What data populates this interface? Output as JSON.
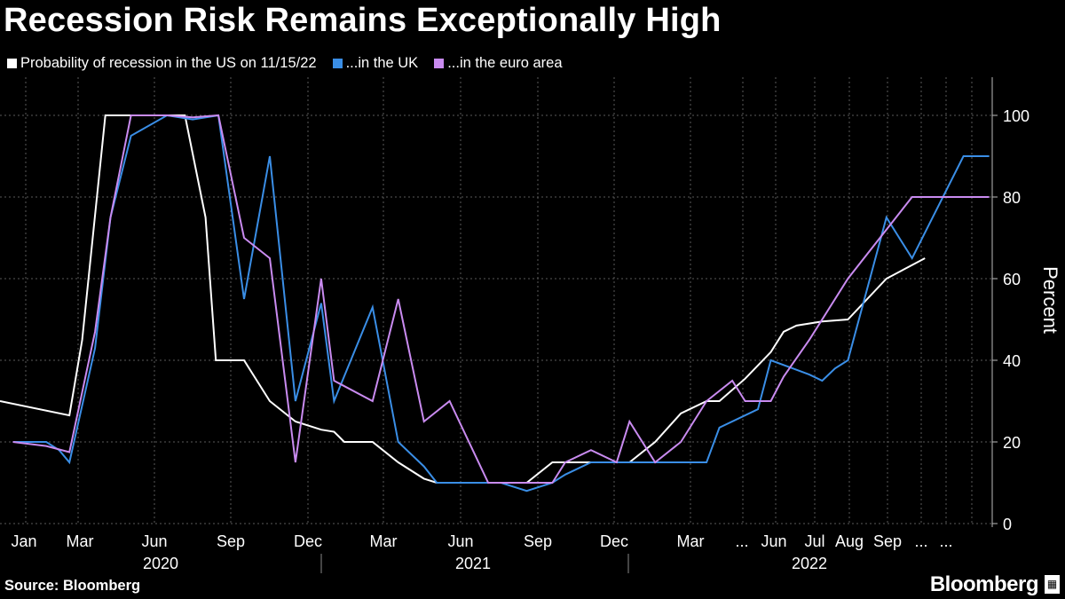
{
  "header": {
    "title": "Recession Risk Remains Exceptionally High"
  },
  "legend": {
    "items": [
      {
        "label": "Probability of recession in the US on 11/15/22",
        "color": "#ffffff"
      },
      {
        "label": "...in the UK",
        "color": "#3a8ee6"
      },
      {
        "label": "...in the euro area",
        "color": "#c98bf0"
      }
    ]
  },
  "footer": {
    "source": "Source: Bloomberg",
    "brand": "Bloomberg"
  },
  "chart_data": {
    "type": "line",
    "title": "Recession Risk Remains Exceptionally High",
    "ylabel": "Percent",
    "xlabel": "",
    "ylim": [
      0,
      100
    ],
    "y_ticks": [
      0,
      20,
      40,
      60,
      80,
      100
    ],
    "x_tick_labels": [
      "Jan",
      "Mar",
      "Jun",
      "Sep",
      "Dec",
      "Mar",
      "Jun",
      "Sep",
      "Dec",
      "Mar",
      "...",
      "Jun",
      "Jul",
      "Aug",
      "Sep",
      "...",
      "..."
    ],
    "x_groups": [
      "2020",
      "2021",
      "2022"
    ],
    "grid": true,
    "legend_position": "top-left",
    "series": [
      {
        "name": "Probability of recession in the US on 11/15/22",
        "color": "#ffffff",
        "points": [
          [
            2019.83,
            30
          ],
          [
            2020.1,
            26.5
          ],
          [
            2020.15,
            45
          ],
          [
            2020.24,
            100
          ],
          [
            2020.55,
            100
          ],
          [
            2020.63,
            75
          ],
          [
            2020.67,
            40
          ],
          [
            2020.78,
            40
          ],
          [
            2020.88,
            30
          ],
          [
            2020.98,
            25
          ],
          [
            2021.08,
            23
          ],
          [
            2021.13,
            22.5
          ],
          [
            2021.17,
            20
          ],
          [
            2021.28,
            20
          ],
          [
            2021.38,
            15
          ],
          [
            2021.48,
            11
          ],
          [
            2021.53,
            10
          ],
          [
            2021.78,
            10
          ],
          [
            2021.88,
            10
          ],
          [
            2021.98,
            15
          ],
          [
            2022.13,
            15
          ],
          [
            2022.28,
            15
          ],
          [
            2022.38,
            20
          ],
          [
            2022.48,
            27
          ],
          [
            2022.58,
            30
          ],
          [
            2022.63,
            30
          ],
          [
            2022.73,
            35.5
          ],
          [
            2022.83,
            42
          ],
          [
            2022.88,
            47
          ],
          [
            2022.93,
            48.5
          ],
          [
            2023.03,
            49.5
          ],
          [
            2023.13,
            50
          ],
          [
            2023.28,
            60
          ],
          [
            2023.43,
            65
          ]
        ]
      },
      {
        "name": "...in the UK",
        "color": "#3a8ee6",
        "points": [
          [
            2019.88,
            20
          ],
          [
            2020.01,
            20
          ],
          [
            2020.06,
            18
          ],
          [
            2020.1,
            15
          ],
          [
            2020.2,
            43
          ],
          [
            2020.26,
            75
          ],
          [
            2020.34,
            95
          ],
          [
            2020.48,
            100
          ],
          [
            2020.58,
            99
          ],
          [
            2020.68,
            100
          ],
          [
            2020.78,
            55
          ],
          [
            2020.88,
            90
          ],
          [
            2020.98,
            30
          ],
          [
            2021.08,
            54
          ],
          [
            2021.13,
            30
          ],
          [
            2021.28,
            53
          ],
          [
            2021.38,
            20
          ],
          [
            2021.48,
            14
          ],
          [
            2021.53,
            10
          ],
          [
            2021.78,
            10
          ],
          [
            2021.88,
            8
          ],
          [
            2021.98,
            10
          ],
          [
            2022.03,
            12
          ],
          [
            2022.13,
            15
          ],
          [
            2022.28,
            15
          ],
          [
            2022.38,
            15
          ],
          [
            2022.53,
            15
          ],
          [
            2022.58,
            15
          ],
          [
            2022.63,
            23.5
          ],
          [
            2022.78,
            28
          ],
          [
            2022.83,
            40
          ],
          [
            2022.98,
            36.5
          ],
          [
            2023.03,
            35
          ],
          [
            2023.08,
            38
          ],
          [
            2023.13,
            40
          ],
          [
            2023.28,
            75
          ],
          [
            2023.38,
            65
          ],
          [
            2023.58,
            90
          ],
          [
            2023.68,
            90
          ]
        ]
      },
      {
        "name": "...in the euro area",
        "color": "#c98bf0",
        "points": [
          [
            2019.88,
            20
          ],
          [
            2020.01,
            19
          ],
          [
            2020.1,
            17.5
          ],
          [
            2020.2,
            47
          ],
          [
            2020.26,
            75
          ],
          [
            2020.34,
            100
          ],
          [
            2020.48,
            100
          ],
          [
            2020.58,
            99.5
          ],
          [
            2020.68,
            100
          ],
          [
            2020.78,
            70
          ],
          [
            2020.88,
            65
          ],
          [
            2020.98,
            15
          ],
          [
            2021.08,
            60
          ],
          [
            2021.13,
            35
          ],
          [
            2021.28,
            30
          ],
          [
            2021.38,
            55
          ],
          [
            2021.48,
            25
          ],
          [
            2021.58,
            30
          ],
          [
            2021.73,
            10
          ],
          [
            2021.88,
            10
          ],
          [
            2021.98,
            10
          ],
          [
            2022.03,
            15
          ],
          [
            2022.13,
            18
          ],
          [
            2022.23,
            15
          ],
          [
            2022.28,
            25
          ],
          [
            2022.38,
            15
          ],
          [
            2022.48,
            20
          ],
          [
            2022.58,
            30
          ],
          [
            2022.68,
            35
          ],
          [
            2022.73,
            30
          ],
          [
            2022.83,
            30
          ],
          [
            2022.88,
            36
          ],
          [
            2022.98,
            45
          ],
          [
            2023.13,
            60
          ],
          [
            2023.28,
            72
          ],
          [
            2023.38,
            80
          ],
          [
            2023.58,
            80
          ],
          [
            2023.68,
            80
          ]
        ]
      }
    ]
  }
}
